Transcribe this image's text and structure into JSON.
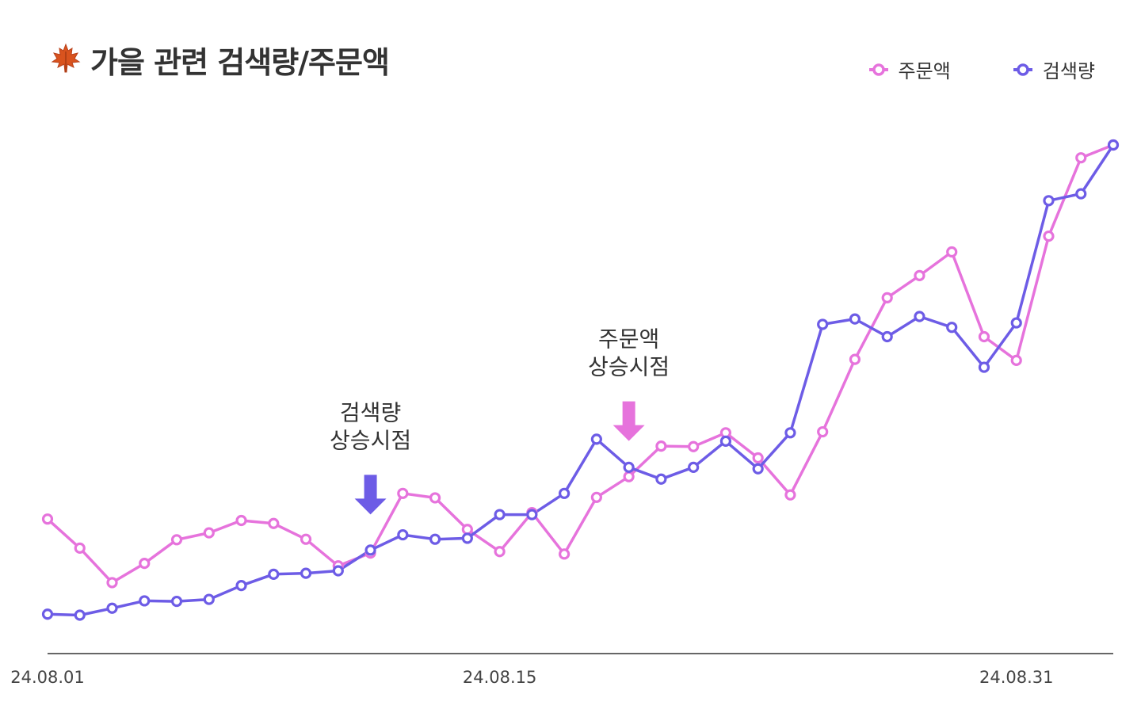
{
  "title": "가을 관련 검색량/주문액",
  "title_icon": "maple-leaf-icon",
  "colors": {
    "orders": "#e673dc",
    "search": "#6d5ce6",
    "axis": "#666666",
    "text": "#333333",
    "tick": "#444444"
  },
  "chart_data": {
    "type": "line",
    "x": [
      "24.08.01",
      "24.08.02",
      "24.08.03",
      "24.08.04",
      "24.08.05",
      "24.08.06",
      "24.08.07",
      "24.08.08",
      "24.08.09",
      "24.08.10",
      "24.08.11",
      "24.08.12",
      "24.08.13",
      "24.08.14",
      "24.08.15",
      "24.08.16",
      "24.08.17",
      "24.08.18",
      "24.08.19",
      "24.08.20",
      "24.08.21",
      "24.08.22",
      "24.08.23",
      "24.08.24",
      "24.08.25",
      "24.08.26",
      "24.08.27",
      "24.08.28",
      "24.08.29",
      "24.08.30",
      "24.08.31",
      "24.09.01",
      "24.09.02",
      "24.09.03"
    ],
    "xticks": [
      "24.08.01",
      "24.08.15",
      "24.08.31"
    ],
    "ylim": [
      0,
      100
    ],
    "y_axis_visible": false,
    "grid": false,
    "legend_position": "top-right",
    "series": [
      {
        "key": "orders",
        "name": "주문액",
        "values": [
          27.3,
          21.4,
          14.4,
          18.3,
          23.1,
          24.5,
          27.0,
          26.4,
          23.2,
          17.8,
          20.4,
          32.5,
          31.6,
          25.2,
          20.7,
          28.6,
          20.2,
          31.7,
          35.9,
          42.1,
          42.0,
          44.8,
          39.7,
          32.2,
          45.0,
          59.7,
          72.2,
          76.7,
          81.5,
          64.3,
          59.5,
          84.7,
          100.6,
          103.2
        ]
      },
      {
        "key": "search",
        "name": "검색량",
        "values": [
          8.0,
          7.8,
          9.2,
          10.7,
          10.6,
          11.0,
          13.8,
          16.1,
          16.3,
          16.8,
          21.0,
          24.1,
          23.2,
          23.4,
          28.2,
          28.2,
          32.5,
          43.5,
          37.8,
          35.4,
          37.8,
          43.1,
          37.5,
          44.8,
          66.8,
          67.9,
          64.3,
          68.4,
          66.2,
          58.1,
          67.1,
          91.9,
          93.3,
          103.2
        ]
      }
    ],
    "annotations": [
      {
        "series": "search",
        "at": "24.08.11",
        "label_lines": [
          "검색량",
          "상승시점"
        ]
      },
      {
        "series": "orders",
        "at": "24.08.19",
        "label_lines": [
          "주문액",
          "상승시점"
        ]
      }
    ]
  }
}
